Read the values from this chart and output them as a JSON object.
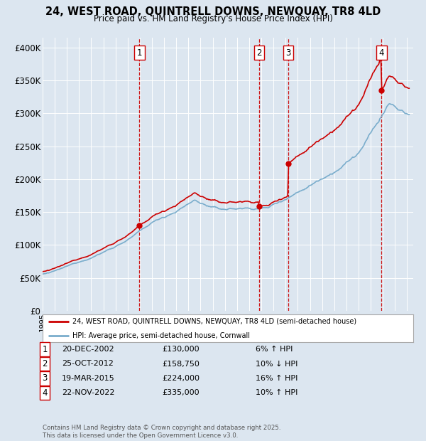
{
  "title": "24, WEST ROAD, QUINTRELL DOWNS, NEWQUAY, TR8 4LD",
  "subtitle": "Price paid vs. HM Land Registry's House Price Index (HPI)",
  "background_color": "#dce6f0",
  "plot_bg_color": "#dce6f0",
  "ylabel_ticks": [
    "£0",
    "£50K",
    "£100K",
    "£150K",
    "£200K",
    "£250K",
    "£300K",
    "£350K",
    "£400K"
  ],
  "ytick_values": [
    0,
    50000,
    100000,
    150000,
    200000,
    250000,
    300000,
    350000,
    400000
  ],
  "ylim": [
    0,
    415000
  ],
  "xlim_start": 1995.0,
  "xlim_end": 2025.5,
  "transactions": [
    {
      "num": 1,
      "date": "20-DEC-2002",
      "price": 130000,
      "pct": "6%",
      "dir": "↑",
      "year": 2002.96
    },
    {
      "num": 2,
      "date": "25-OCT-2012",
      "price": 158750,
      "pct": "10%",
      "dir": "↓",
      "year": 2012.82
    },
    {
      "num": 3,
      "date": "19-MAR-2015",
      "price": 224000,
      "pct": "16%",
      "dir": "↑",
      "year": 2015.21
    },
    {
      "num": 4,
      "date": "22-NOV-2022",
      "price": 335000,
      "pct": "10%",
      "dir": "↑",
      "year": 2022.89
    }
  ],
  "legend_line1": "24, WEST ROAD, QUINTRELL DOWNS, NEWQUAY, TR8 4LD (semi-detached house)",
  "legend_line2": "HPI: Average price, semi-detached house, Cornwall",
  "footnote": "Contains HM Land Registry data © Crown copyright and database right 2025.\nThis data is licensed under the Open Government Licence v3.0.",
  "line_red": "#cc0000",
  "line_blue": "#7aadcc",
  "dashed_red": "#cc0000",
  "table_rows": [
    [
      "1",
      "20-DEC-2002",
      "£130,000",
      "6% ↑ HPI"
    ],
    [
      "2",
      "25-OCT-2012",
      "£158,750",
      "10% ↓ HPI"
    ],
    [
      "3",
      "19-MAR-2015",
      "£224,000",
      "16% ↑ HPI"
    ],
    [
      "4",
      "22-NOV-2022",
      "£335,000",
      "10% ↑ HPI"
    ]
  ]
}
